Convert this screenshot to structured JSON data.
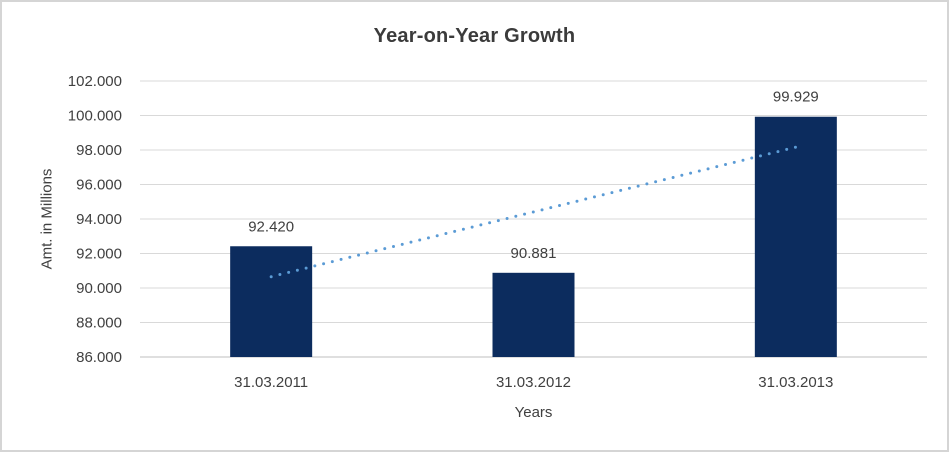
{
  "window": {
    "background": "#ffffff",
    "border_color": "#d5d5d5"
  },
  "chart_data": {
    "type": "bar",
    "title": "Year-on-Year Growth",
    "xlabel": "Years",
    "ylabel": "Amt. in Millions",
    "categories": [
      "31.03.2011",
      "31.03.2012",
      "31.03.2013"
    ],
    "values": [
      92420,
      90881,
      99929
    ],
    "value_labels": [
      "92.420",
      "90.881",
      "99.929"
    ],
    "ylim": [
      86000,
      102000
    ],
    "ytick_step": 2000,
    "ytick_labels": [
      "86.000",
      "88.000",
      "90.000",
      "92.000",
      "94.000",
      "96.000",
      "98.000",
      "100.000",
      "102.000"
    ],
    "grid": true,
    "legend": "none",
    "bar_color": "#0c2c5e",
    "gridline_color": "#d9d9d9",
    "axisline_color": "#bfbfbf",
    "text_color": "#404040",
    "trendline": {
      "type": "linear",
      "style": "dotted",
      "color": "#5b9bd5",
      "start_value_approx": 90660,
      "end_value_approx": 98170
    }
  }
}
